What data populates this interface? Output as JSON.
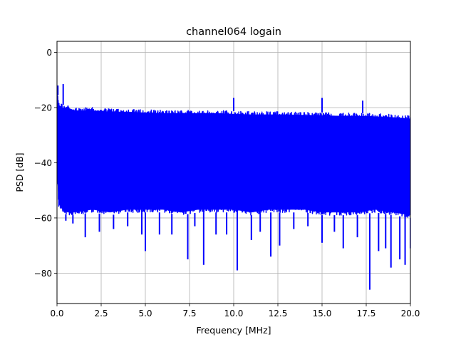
{
  "chart_data": {
    "type": "line",
    "title": "channel064 logain",
    "xlabel": "Frequency [MHz]",
    "ylabel": "PSD [dB]",
    "xlim": [
      0,
      20
    ],
    "ylim": [
      -91,
      4
    ],
    "grid": true,
    "legend": "none",
    "x_ticks": [
      0,
      2.5,
      5,
      7.5,
      10,
      12.5,
      15,
      17.5,
      20
    ],
    "x_tick_labels": [
      "0.0",
      "2.5",
      "5.0",
      "7.5",
      "10.0",
      "12.5",
      "15.0",
      "17.5",
      "20.0"
    ],
    "y_ticks": [
      0,
      -20,
      -40,
      -60,
      -80
    ],
    "y_tick_labels": [
      "0",
      "−20",
      "−40",
      "−60",
      "−80"
    ],
    "series": [
      {
        "color": "#0000ff",
        "envelope": {
          "x": [
            0,
            0.1,
            0.3,
            0.6,
            1.0,
            2.0,
            3.0,
            4.0,
            5.0,
            6.0,
            7.0,
            8.0,
            9.0,
            10.0,
            11.0,
            12.0,
            13.0,
            14.0,
            15.0,
            16.0,
            17.0,
            18.0,
            19.0,
            20.0
          ],
          "upper": [
            -13,
            -18,
            -19,
            -19,
            -20,
            -20,
            -20.5,
            -20.5,
            -20.8,
            -21,
            -21,
            -21,
            -21,
            -21.3,
            -21.5,
            -21.5,
            -21.5,
            -21.7,
            -21.8,
            -22,
            -22,
            -22.2,
            -22.5,
            -23
          ],
          "lower": [
            -45,
            -56,
            -58,
            -59,
            -59,
            -58,
            -59,
            -58,
            -58,
            -58,
            -59,
            -58,
            -58,
            -58,
            -59,
            -58,
            -58,
            -58,
            -59,
            -59,
            -59,
            -58,
            -59,
            -60
          ]
        },
        "peaks": [
          {
            "x": 0.05,
            "y": -12
          },
          {
            "x": 0.35,
            "y": -11.5
          },
          {
            "x": 10.0,
            "y": -16.5
          },
          {
            "x": 15.0,
            "y": -16.5
          },
          {
            "x": 17.3,
            "y": -17.5
          }
        ],
        "dips": [
          {
            "x": 0.5,
            "y": -61
          },
          {
            "x": 0.9,
            "y": -62
          },
          {
            "x": 1.6,
            "y": -67
          },
          {
            "x": 2.4,
            "y": -65
          },
          {
            "x": 3.2,
            "y": -64
          },
          {
            "x": 4.0,
            "y": -63
          },
          {
            "x": 4.8,
            "y": -66
          },
          {
            "x": 5.0,
            "y": -72
          },
          {
            "x": 5.8,
            "y": -66
          },
          {
            "x": 6.5,
            "y": -66
          },
          {
            "x": 7.4,
            "y": -75
          },
          {
            "x": 7.8,
            "y": -63
          },
          {
            "x": 8.3,
            "y": -77
          },
          {
            "x": 9.0,
            "y": -66
          },
          {
            "x": 9.6,
            "y": -66
          },
          {
            "x": 10.2,
            "y": -79
          },
          {
            "x": 11.0,
            "y": -68
          },
          {
            "x": 11.5,
            "y": -65
          },
          {
            "x": 12.1,
            "y": -74
          },
          {
            "x": 12.6,
            "y": -70
          },
          {
            "x": 13.4,
            "y": -64
          },
          {
            "x": 14.2,
            "y": -63
          },
          {
            "x": 15.0,
            "y": -69
          },
          {
            "x": 15.7,
            "y": -65
          },
          {
            "x": 16.2,
            "y": -71
          },
          {
            "x": 17.0,
            "y": -67
          },
          {
            "x": 17.7,
            "y": -86
          },
          {
            "x": 18.2,
            "y": -72
          },
          {
            "x": 18.6,
            "y": -71
          },
          {
            "x": 18.9,
            "y": -78
          },
          {
            "x": 19.4,
            "y": -75
          },
          {
            "x": 19.7,
            "y": -77
          },
          {
            "x": 20.0,
            "y": -71
          }
        ]
      }
    ]
  }
}
